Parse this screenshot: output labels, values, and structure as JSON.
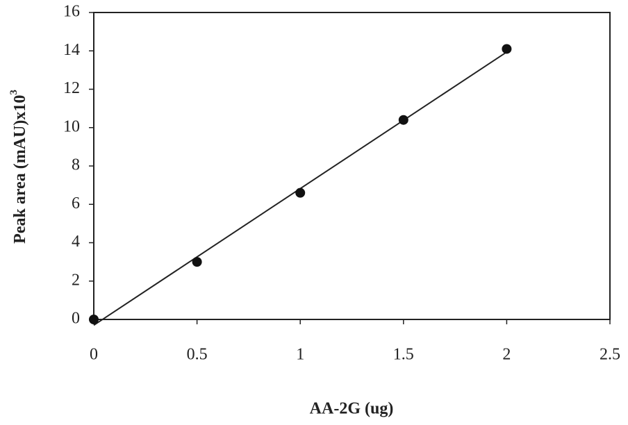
{
  "chart_data": {
    "type": "scatter",
    "xlabel": "AA-2G (ug)",
    "ylabel": "Peak area (mAU)x10",
    "ylabel_sup": "3",
    "series": [
      {
        "x": [
          0,
          0.5,
          1,
          1.5,
          2
        ],
        "values": [
          0,
          3.0,
          6.6,
          10.4,
          14.1
        ],
        "color": "#111111"
      }
    ],
    "trendline": true,
    "xlim": [
      0,
      2.5
    ],
    "xticks": [
      0,
      0.5,
      1,
      1.5,
      2,
      2.5
    ],
    "ylim": [
      0,
      16
    ],
    "yticks": [
      0,
      2,
      4,
      6,
      8,
      10,
      12,
      14,
      16
    ],
    "grid": false
  }
}
